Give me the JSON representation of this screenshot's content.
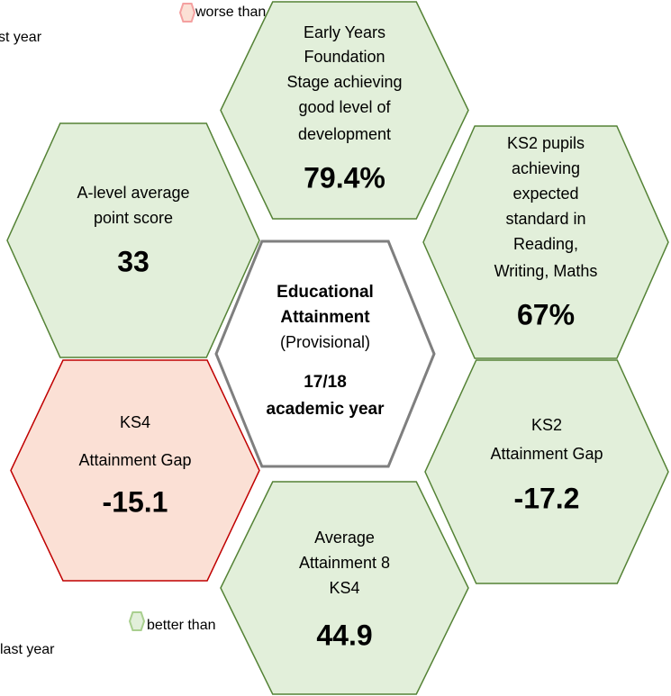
{
  "legend": {
    "worse": [
      "worse than",
      "st year"
    ],
    "better": [
      "better than",
      "last year"
    ]
  },
  "center": {
    "title": [
      "Educational",
      "Attainment"
    ],
    "subtitle": "(Provisional)",
    "period": [
      "17/18",
      "academic year"
    ]
  },
  "hexagons": [
    {
      "lines": [
        "Early Years",
        "Foundation",
        "Stage achieving",
        "good level of",
        "development"
      ],
      "value": "79.4%",
      "status": "better"
    },
    {
      "lines": [
        "A-level average",
        "point score"
      ],
      "value": "33",
      "status": "better"
    },
    {
      "lines": [
        "KS2 pupils",
        "achieving",
        "expected",
        "standard in",
        "Reading,",
        "Writing, Maths"
      ],
      "value": "67%",
      "status": "better"
    },
    {
      "lines": [
        "KS4",
        "Attainment Gap"
      ],
      "value": "-15.1",
      "status": "worse"
    },
    {
      "lines": [
        "KS2",
        "Attainment Gap"
      ],
      "value": "-17.2",
      "status": "better"
    },
    {
      "lines": [
        "Average",
        "Attainment 8",
        "KS4"
      ],
      "value": "44.9",
      "status": "better"
    }
  ]
}
